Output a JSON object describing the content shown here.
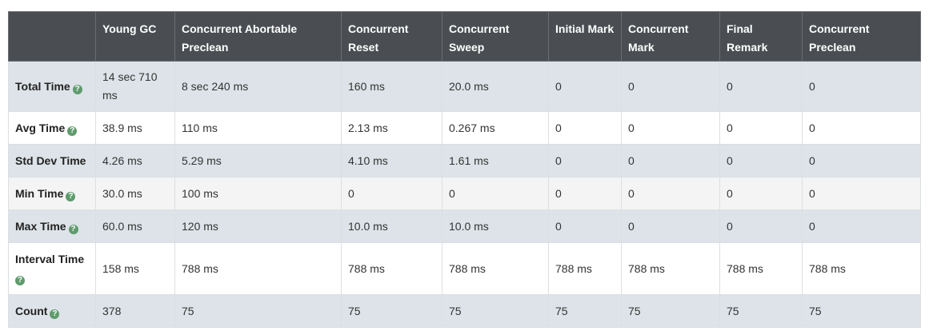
{
  "table": {
    "headers": [
      "",
      "Young GC",
      "Concurrent Abortable Preclean",
      "Concurrent Reset",
      "Concurrent Sweep",
      "Initial Mark",
      "Concurrent Mark",
      "Final Remark",
      "Concurrent Preclean"
    ],
    "rows": [
      {
        "label": "Total Time",
        "help": true,
        "cells": [
          "14 sec 710 ms",
          "8 sec 240 ms",
          "160 ms",
          "20.0 ms",
          "0",
          "0",
          "0",
          "0"
        ]
      },
      {
        "label": "Avg Time",
        "help": true,
        "cells": [
          "38.9 ms",
          "110 ms",
          "2.13 ms",
          "0.267 ms",
          "0",
          "0",
          "0",
          "0"
        ]
      },
      {
        "label": "Std Dev Time",
        "help": false,
        "cells": [
          "4.26 ms",
          "5.29 ms",
          "4.10 ms",
          "1.61 ms",
          "0",
          "0",
          "0",
          "0"
        ]
      },
      {
        "label": "Min Time",
        "help": true,
        "cells": [
          "30.0 ms",
          "100 ms",
          "0",
          "0",
          "0",
          "0",
          "0",
          "0"
        ]
      },
      {
        "label": "Max Time",
        "help": true,
        "cells": [
          "60.0 ms",
          "120 ms",
          "10.0 ms",
          "10.0 ms",
          "0",
          "0",
          "0",
          "0"
        ]
      },
      {
        "label": "Interval Time",
        "help": true,
        "cells": [
          "158 ms",
          "788 ms",
          "788 ms",
          "788 ms",
          "788 ms",
          "788 ms",
          "788 ms",
          "788 ms"
        ]
      },
      {
        "label": "Count",
        "help": true,
        "cells": [
          "378",
          "75",
          "75",
          "75",
          "75",
          "75",
          "75",
          "75"
        ]
      }
    ]
  },
  "help_icon_glyph": "?",
  "colors": {
    "header_bg": "#4a4e52",
    "shaded_row_bg": "#dde3e8",
    "help_icon": "#5f9b6c"
  }
}
